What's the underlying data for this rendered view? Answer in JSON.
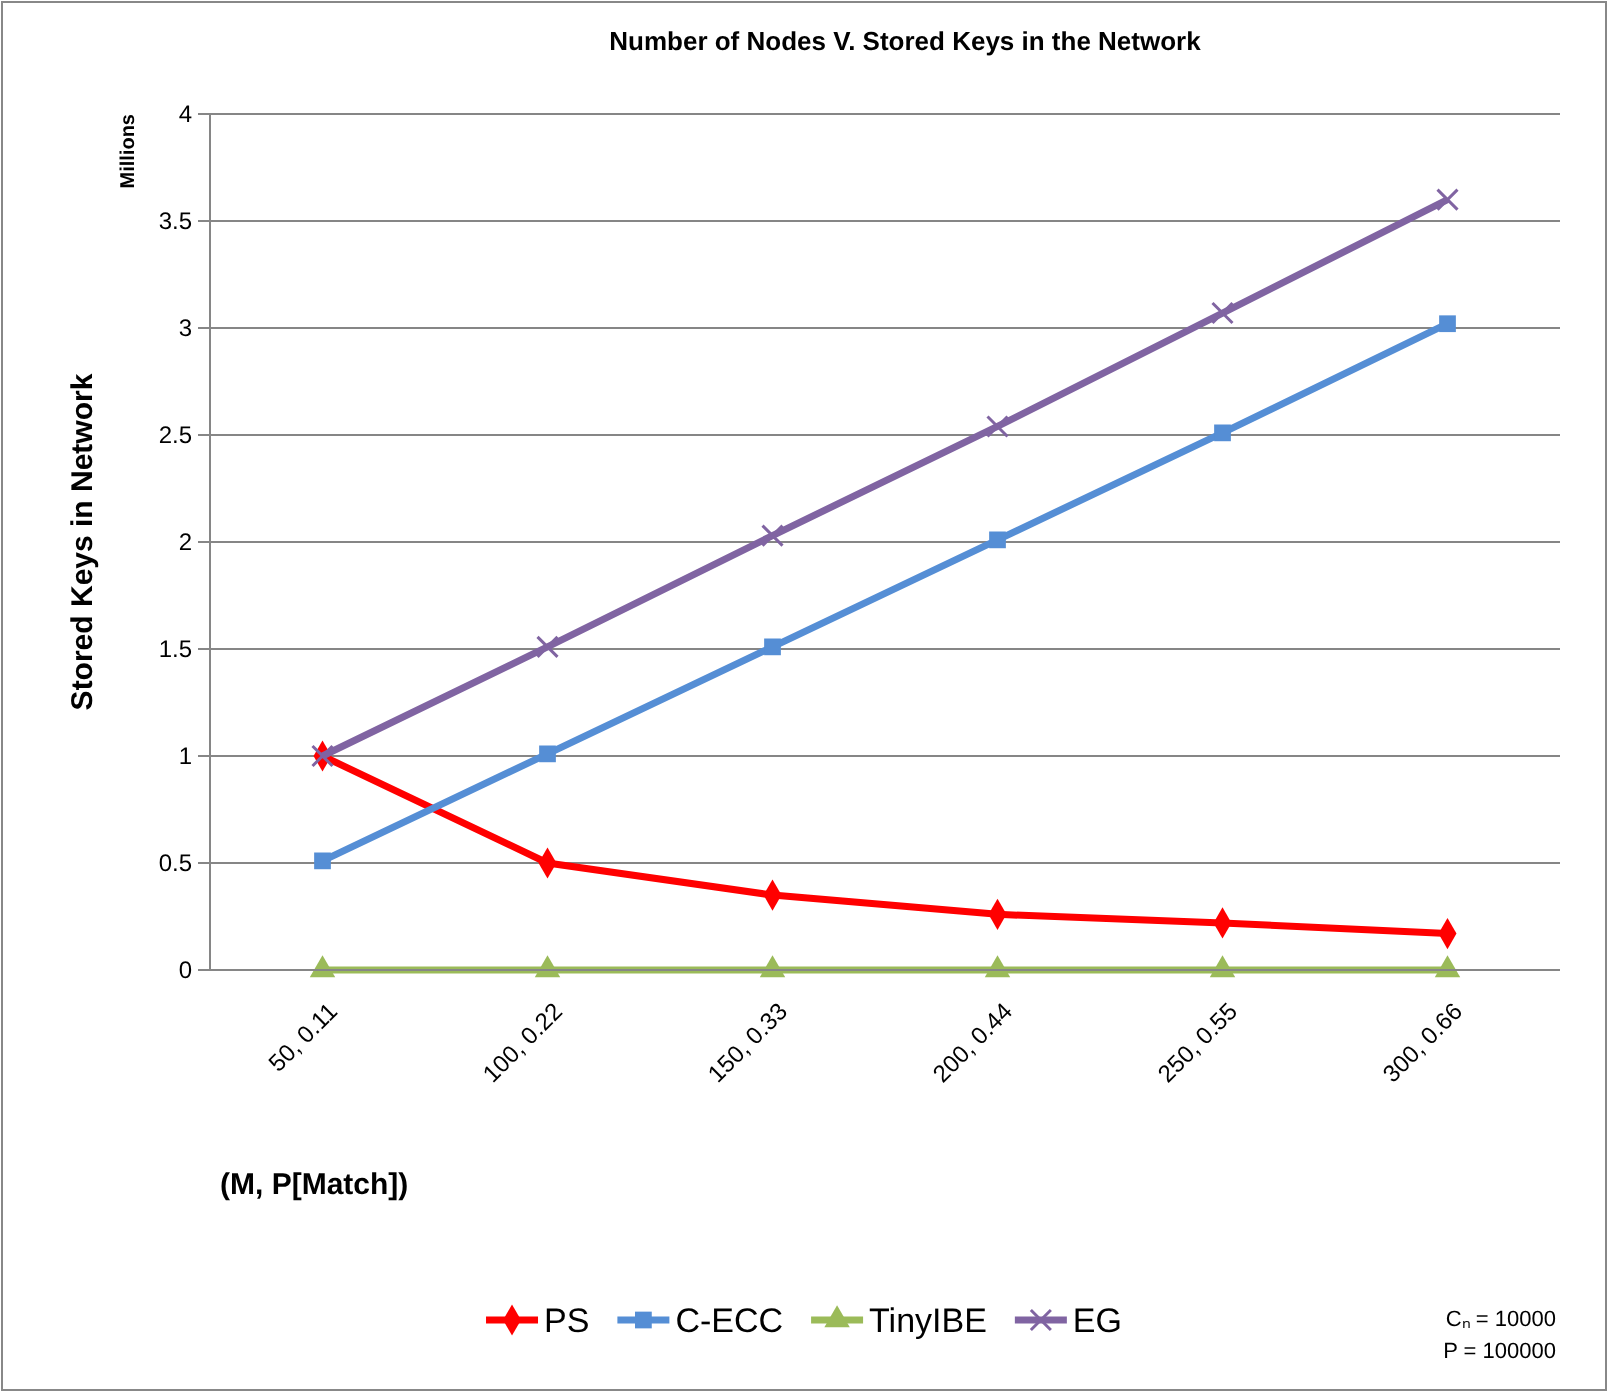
{
  "chart_data": {
    "type": "line",
    "title": "Number of Nodes V. Stored Keys in the Network",
    "xlabel": "(M, P[Match])",
    "ylabel": "Stored Keys in Network",
    "annotations": [
      "Millions",
      "Cₙ = 10000",
      "P = 100000"
    ],
    "categories": [
      "50, 0.11",
      "100, 0.22",
      "150, 0.33",
      "200, 0.44",
      "250, 0.55",
      "300, 0.66"
    ],
    "series": [
      {
        "name": "PS",
        "color": "#ff0000",
        "marker": "diamond",
        "values": [
          1.0,
          0.5,
          0.35,
          0.26,
          0.22,
          0.17
        ]
      },
      {
        "name": "C-ECC",
        "color": "#558ed5",
        "marker": "square",
        "values": [
          0.51,
          1.01,
          1.51,
          2.01,
          2.51,
          3.02
        ]
      },
      {
        "name": "TinyIBE",
        "color": "#9bbb59",
        "marker": "triangle",
        "values": [
          0,
          0,
          0,
          0,
          0,
          0
        ]
      },
      {
        "name": "EG",
        "color": "#8064a2",
        "marker": "cross",
        "values": [
          1.0,
          1.51,
          2.03,
          2.54,
          3.07,
          3.6
        ]
      }
    ],
    "ylim": [
      0,
      4
    ],
    "yticks": [
      0,
      0.5,
      1,
      1.5,
      2,
      2.5,
      3,
      3.5,
      4
    ],
    "grid": "y",
    "legend": "bottom",
    "line_style": "solid"
  }
}
